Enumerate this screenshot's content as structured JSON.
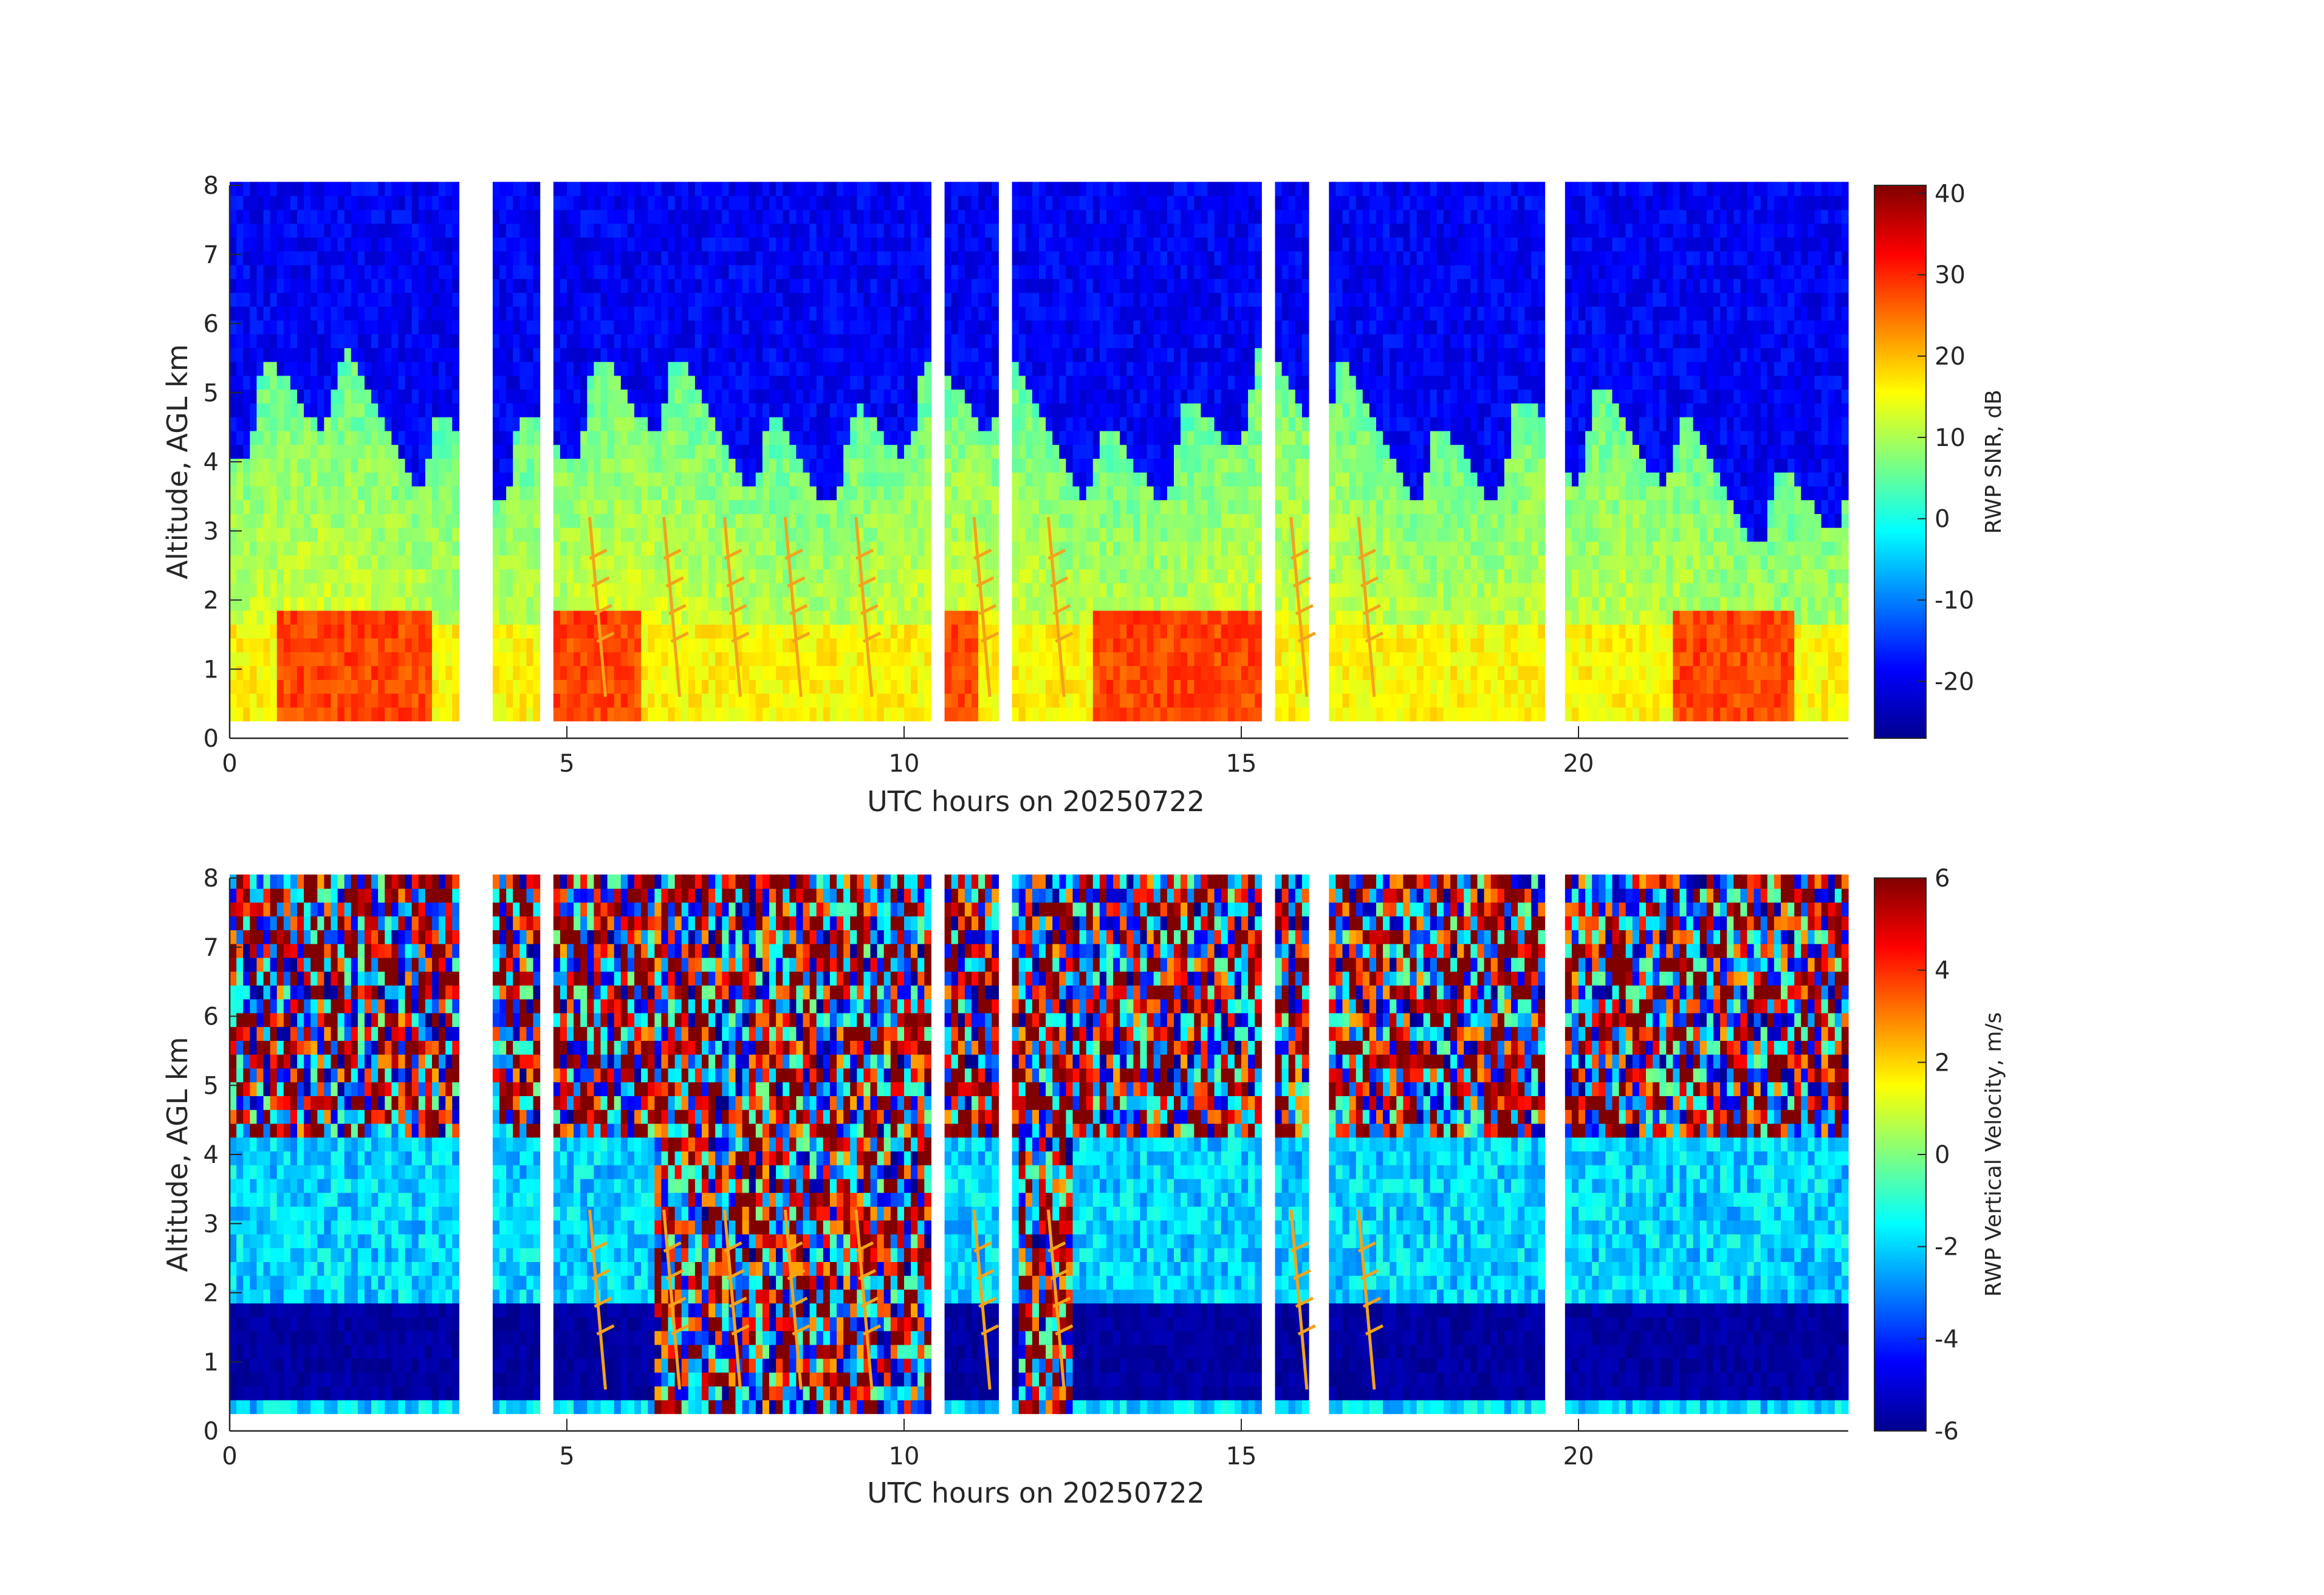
{
  "chart_data": [
    {
      "type": "heatmap",
      "name": "snr",
      "xlabel": "UTC hours on 20250722",
      "ylabel": "Altitude, AGL km",
      "xlim": [
        0,
        24
      ],
      "ylim": [
        0,
        8
      ],
      "xticks": [
        0,
        5,
        10,
        15,
        20
      ],
      "yticks": [
        0,
        1,
        2,
        3,
        4,
        5,
        6,
        7,
        8
      ],
      "colorbar": {
        "label": "RWP SNR, dB",
        "range": [
          -27,
          41
        ],
        "ticks": [
          -20,
          -10,
          0,
          10,
          20,
          30,
          40
        ]
      },
      "colormap": "jet",
      "data_gaps_hours": [
        [
          3.45,
          3.95
        ],
        [
          4.6,
          4.75
        ],
        [
          10.4,
          10.55
        ],
        [
          11.35,
          11.55
        ],
        [
          15.3,
          15.5
        ],
        [
          16.0,
          16.3
        ],
        [
          19.55,
          19.8
        ]
      ],
      "wind_barbs_hours": [
        5.5,
        6.6,
        7.5,
        8.4,
        9.45,
        11.2,
        12.3,
        15.9,
        16.9
      ]
    },
    {
      "type": "heatmap",
      "name": "vertical-velocity",
      "xlabel": "UTC hours on 20250722",
      "ylabel": "Altitude, AGL km",
      "xlim": [
        0,
        24
      ],
      "ylim": [
        0,
        8
      ],
      "xticks": [
        0,
        5,
        10,
        15,
        20
      ],
      "yticks": [
        0,
        1,
        2,
        3,
        4,
        5,
        6,
        7,
        8
      ],
      "colorbar": {
        "label": "RWP Vertical Velocity, m/s",
        "range": [
          -6,
          6
        ],
        "ticks": [
          -6,
          -4,
          -2,
          0,
          2,
          4,
          6
        ]
      },
      "colormap": "jet",
      "data_gaps_hours": [
        [
          3.45,
          3.95
        ],
        [
          4.6,
          4.75
        ],
        [
          10.4,
          10.55
        ],
        [
          11.35,
          11.55
        ],
        [
          15.3,
          15.5
        ],
        [
          16.0,
          16.3
        ],
        [
          19.55,
          19.8
        ]
      ],
      "wind_barbs_hours": [
        5.5,
        6.6,
        7.5,
        8.4,
        9.45,
        11.2,
        12.3,
        15.9,
        16.9
      ]
    }
  ],
  "colors": {
    "barb": "#f2a31b",
    "axis": "#262626"
  }
}
